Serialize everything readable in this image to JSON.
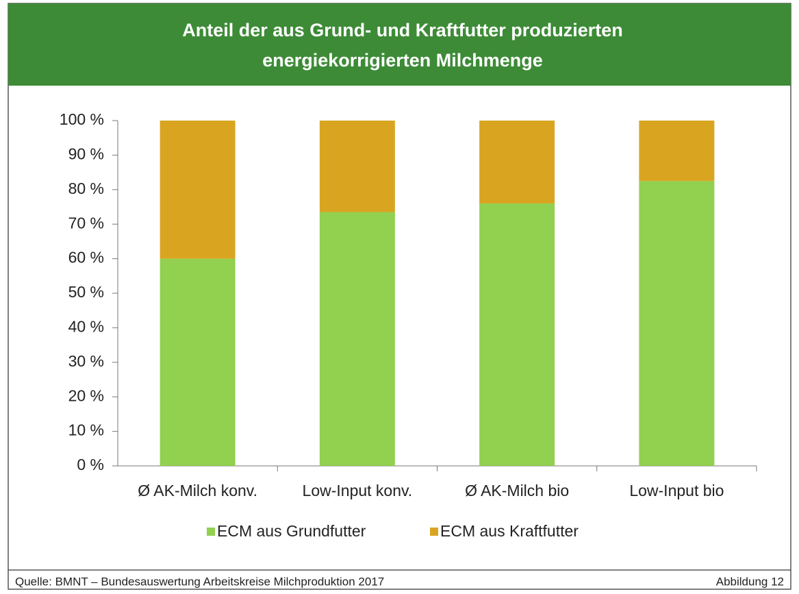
{
  "chart_data": {
    "type": "stacked_bar",
    "title": "Anteil der aus Grund- und Kraftfutter produzierten",
    "subtitle": "energiekorrigierten Milchmenge",
    "categories": [
      "Ø AK-Milch konv.",
      "Low-Input konv.",
      "Ø AK-Milch bio",
      "Low-Input bio"
    ],
    "series": [
      {
        "name": "ECM aus Grundfutter",
        "color": "#92d050",
        "values": [
          60,
          73.5,
          76,
          82.5
        ]
      },
      {
        "name": "ECM aus Kraftfutter",
        "color": "#d9a521",
        "values": [
          40,
          26.5,
          24,
          17.5
        ]
      }
    ],
    "ylim": [
      0,
      100
    ],
    "yticks": [
      {
        "value": 0,
        "label": "0 %"
      },
      {
        "value": 10,
        "label": "10 %"
      },
      {
        "value": 20,
        "label": "20 %"
      },
      {
        "value": 30,
        "label": "30 %"
      },
      {
        "value": 40,
        "label": "40 %"
      },
      {
        "value": 50,
        "label": "50 %"
      },
      {
        "value": 60,
        "label": "60 %"
      },
      {
        "value": 70,
        "label": "70 %"
      },
      {
        "value": 80,
        "label": "80 %"
      },
      {
        "value": 90,
        "label": "90 %"
      },
      {
        "value": 100,
        "label": "100 %"
      }
    ],
    "legend": "bottom",
    "source": "Quelle: BMNT – Bundesauswertung Arbeitskreise Milchproduktion 2017",
    "figure_label": "Abbildung 12"
  }
}
